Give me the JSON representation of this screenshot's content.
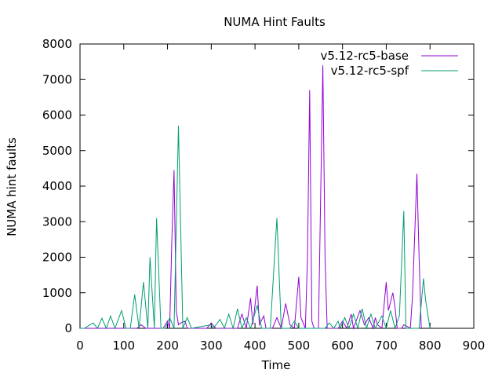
{
  "chart_data": {
    "type": "line",
    "title": "NUMA Hint Faults",
    "xlabel": "Time",
    "ylabel": "NUMA hint faults",
    "xlim": [
      0,
      900
    ],
    "ylim": [
      0,
      8000
    ],
    "x_ticks": [
      0,
      100,
      200,
      300,
      400,
      500,
      600,
      700,
      800,
      900
    ],
    "y_ticks": [
      0,
      1000,
      2000,
      3000,
      4000,
      5000,
      6000,
      7000,
      8000
    ],
    "grid": false,
    "legend_position": "top-right",
    "series": [
      {
        "name": "v5.12-rc5-base",
        "color": "#9400d3",
        "points": [
          [
            0,
            0
          ],
          [
            130,
            0
          ],
          [
            140,
            100
          ],
          [
            150,
            0
          ],
          [
            190,
            0
          ],
          [
            200,
            200
          ],
          [
            205,
            0
          ],
          [
            210,
            2500
          ],
          [
            215,
            4450
          ],
          [
            220,
            500
          ],
          [
            225,
            100
          ],
          [
            230,
            150
          ],
          [
            240,
            200
          ],
          [
            245,
            0
          ],
          [
            290,
            0
          ],
          [
            300,
            150
          ],
          [
            310,
            0
          ],
          [
            360,
            0
          ],
          [
            370,
            400
          ],
          [
            380,
            0
          ],
          [
            390,
            850
          ],
          [
            395,
            100
          ],
          [
            405,
            1200
          ],
          [
            410,
            100
          ],
          [
            420,
            350
          ],
          [
            425,
            0
          ],
          [
            440,
            0
          ],
          [
            450,
            300
          ],
          [
            460,
            0
          ],
          [
            470,
            700
          ],
          [
            480,
            100
          ],
          [
            490,
            0
          ],
          [
            500,
            1450
          ],
          [
            505,
            300
          ],
          [
            515,
            0
          ],
          [
            520,
            2000
          ],
          [
            525,
            6700
          ],
          [
            530,
            200
          ],
          [
            535,
            0
          ],
          [
            545,
            0
          ],
          [
            555,
            7400
          ],
          [
            560,
            2000
          ],
          [
            565,
            0
          ],
          [
            590,
            0
          ],
          [
            600,
            200
          ],
          [
            610,
            0
          ],
          [
            620,
            400
          ],
          [
            625,
            0
          ],
          [
            640,
            500
          ],
          [
            650,
            100
          ],
          [
            660,
            300
          ],
          [
            670,
            0
          ],
          [
            675,
            300
          ],
          [
            680,
            100
          ],
          [
            690,
            0
          ],
          [
            700,
            1300
          ],
          [
            705,
            500
          ],
          [
            715,
            1000
          ],
          [
            720,
            600
          ],
          [
            725,
            0
          ],
          [
            735,
            0
          ],
          [
            740,
            100
          ],
          [
            755,
            0
          ],
          [
            760,
            900
          ],
          [
            770,
            4350
          ],
          [
            775,
            2000
          ],
          [
            780,
            0
          ]
        ]
      },
      {
        "name": "v5.12-rc5-spf",
        "color": "#009e73",
        "points": [
          [
            0,
            0
          ],
          [
            10,
            0
          ],
          [
            30,
            150
          ],
          [
            40,
            0
          ],
          [
            50,
            280
          ],
          [
            60,
            0
          ],
          [
            70,
            350
          ],
          [
            80,
            0
          ],
          [
            95,
            500
          ],
          [
            105,
            0
          ],
          [
            115,
            0
          ],
          [
            125,
            950
          ],
          [
            135,
            0
          ],
          [
            145,
            1300
          ],
          [
            155,
            0
          ],
          [
            160,
            2000
          ],
          [
            170,
            0
          ],
          [
            175,
            3100
          ],
          [
            185,
            0
          ],
          [
            195,
            0
          ],
          [
            205,
            300
          ],
          [
            215,
            0
          ],
          [
            225,
            5700
          ],
          [
            235,
            0
          ],
          [
            245,
            300
          ],
          [
            255,
            0
          ],
          [
            300,
            100
          ],
          [
            305,
            0
          ],
          [
            320,
            250
          ],
          [
            330,
            0
          ],
          [
            340,
            400
          ],
          [
            350,
            0
          ],
          [
            360,
            550
          ],
          [
            370,
            0
          ],
          [
            380,
            300
          ],
          [
            390,
            0
          ],
          [
            405,
            650
          ],
          [
            415,
            0
          ],
          [
            435,
            0
          ],
          [
            450,
            3100
          ],
          [
            460,
            0
          ],
          [
            480,
            0
          ],
          [
            490,
            200
          ],
          [
            500,
            0
          ],
          [
            560,
            0
          ],
          [
            570,
            150
          ],
          [
            580,
            0
          ],
          [
            590,
            200
          ],
          [
            595,
            0
          ],
          [
            605,
            300
          ],
          [
            615,
            0
          ],
          [
            625,
            400
          ],
          [
            635,
            0
          ],
          [
            645,
            550
          ],
          [
            655,
            0
          ],
          [
            665,
            400
          ],
          [
            675,
            0
          ],
          [
            690,
            350
          ],
          [
            700,
            0
          ],
          [
            710,
            500
          ],
          [
            720,
            0
          ],
          [
            730,
            350
          ],
          [
            740,
            3300
          ],
          [
            745,
            0
          ],
          [
            760,
            0
          ],
          [
            775,
            0
          ],
          [
            785,
            1400
          ],
          [
            790,
            800
          ],
          [
            800,
            0
          ]
        ]
      }
    ]
  }
}
